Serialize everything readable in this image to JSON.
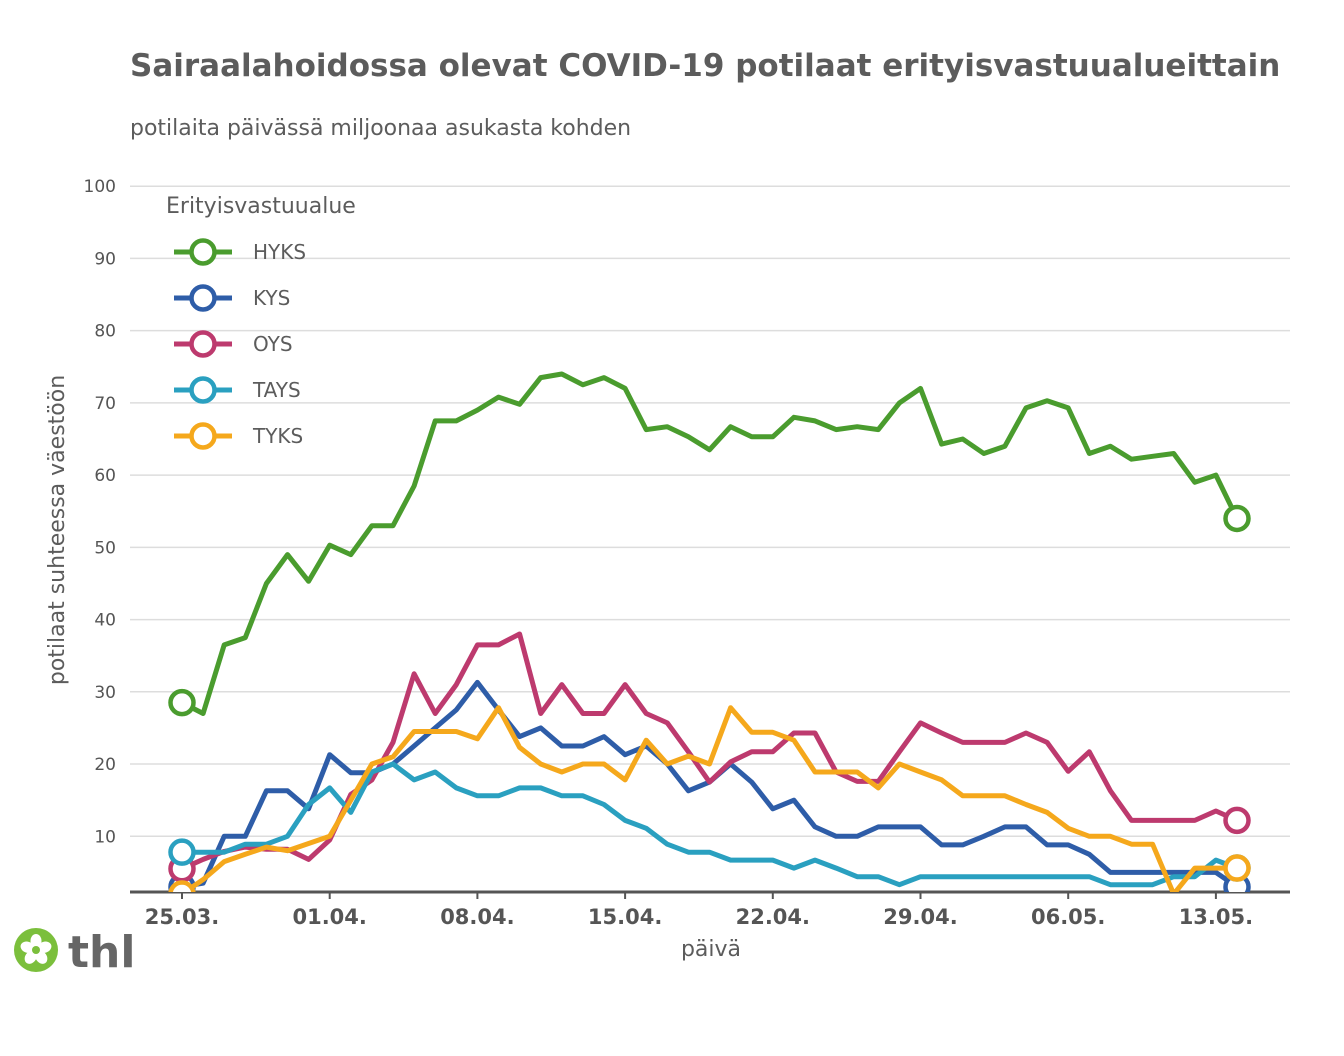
{
  "colors": {
    "HYKS": "#4a9c2e",
    "KYS": "#2e5da8",
    "OYS": "#bd3a6e",
    "TAYS": "#2aa0c0",
    "TYKS": "#f5a81c",
    "grid": "#dddddd",
    "axis": "#555555",
    "logo_green": "#7bbf3c"
  },
  "logo": {
    "text": "thl",
    "icon": "flower-icon"
  },
  "chart_data": {
    "type": "line",
    "title": "Sairaalahoidossa olevat COVID-19 potilaat erityisvastuualueittain",
    "subtitle": "potilaita päivässä miljoonaa asukasta kohden",
    "xlabel": "päivä",
    "ylabel": "potilaat suhteessa väestöön",
    "legend_title": "Erityisvastuualue",
    "legend_position": "top-left",
    "grid": true,
    "ylim": [
      0,
      100
    ],
    "yticks": [
      10,
      20,
      30,
      40,
      50,
      60,
      70,
      80,
      90,
      100
    ],
    "xticks": [
      {
        "day": 0,
        "label": "25.03."
      },
      {
        "day": 7,
        "label": "01.04."
      },
      {
        "day": 14,
        "label": "08.04."
      },
      {
        "day": 21,
        "label": "15.04."
      },
      {
        "day": 28,
        "label": "22.04."
      },
      {
        "day": 35,
        "label": "29.04."
      },
      {
        "day": 42,
        "label": "06.05."
      },
      {
        "day": 49,
        "label": "13.05."
      }
    ],
    "series": [
      {
        "name": "HYKS",
        "values": [
          28.5,
          27,
          36.5,
          37.5,
          45,
          49,
          45.3,
          50.3,
          49,
          53,
          53,
          58.5,
          67.5,
          67.5,
          69,
          70.8,
          69.8,
          73.5,
          74,
          72.5,
          73.5,
          72,
          66.3,
          66.7,
          65.3,
          63.5,
          66.7,
          65.3,
          65.3,
          68,
          67.5,
          66.3,
          66.7,
          66.3,
          70,
          72,
          64.3,
          65,
          63,
          64,
          69.3,
          70.3,
          69.3,
          63,
          64,
          62.2,
          62.6,
          63,
          59,
          60,
          54
        ]
      },
      {
        "name": "KYS",
        "values": [
          3,
          3.5,
          10,
          10,
          16.3,
          16.3,
          13.8,
          21.3,
          18.8,
          18.8,
          20,
          22.5,
          25,
          27.5,
          31.3,
          27.5,
          23.8,
          25,
          22.5,
          22.5,
          23.8,
          21.3,
          22.5,
          20,
          16.3,
          17.5,
          20,
          17.5,
          13.8,
          15,
          11.3,
          10,
          10,
          11.3,
          11.3,
          11.3,
          8.8,
          8.8,
          10,
          11.3,
          11.3,
          8.8,
          8.8,
          7.5,
          5,
          5,
          5,
          5,
          5,
          5,
          3
        ]
      },
      {
        "name": "OYS",
        "values": [
          5.5,
          6.8,
          7.9,
          8.5,
          8.2,
          8.2,
          6.8,
          9.5,
          15.8,
          17.8,
          23,
          32.5,
          27,
          31,
          36.5,
          36.5,
          38,
          27,
          31,
          27,
          27,
          31,
          27,
          25.7,
          21.7,
          17.5,
          20.3,
          21.7,
          21.7,
          24.3,
          24.3,
          18.9,
          17.6,
          17.6,
          21.7,
          25.7,
          24.3,
          23,
          23,
          23,
          24.3,
          23,
          19,
          21.7,
          16.3,
          12.2,
          12.2,
          12.2,
          12.2,
          13.5,
          12.2
        ]
      },
      {
        "name": "TAYS",
        "values": [
          7.8,
          7.8,
          7.8,
          8.9,
          8.9,
          10,
          14.4,
          16.7,
          13.3,
          18.9,
          20,
          17.8,
          18.9,
          16.7,
          15.6,
          15.6,
          16.7,
          16.7,
          15.6,
          15.6,
          14.4,
          12.2,
          11.1,
          8.9,
          7.8,
          7.8,
          6.7,
          6.7,
          6.7,
          5.6,
          6.7,
          5.6,
          4.4,
          4.4,
          3.3,
          4.4,
          4.4,
          4.4,
          4.4,
          4.4,
          4.4,
          4.4,
          4.4,
          4.4,
          3.3,
          3.3,
          3.3,
          4.4,
          4.4,
          6.7,
          5.6
        ]
      },
      {
        "name": "TYKS",
        "values": [
          2,
          4,
          6.5,
          7.5,
          8.5,
          8,
          9,
          10,
          15,
          20,
          21,
          24.5,
          24.5,
          24.5,
          23.5,
          27.8,
          22.3,
          20,
          18.9,
          20,
          20,
          17.8,
          23.3,
          20,
          21.1,
          20,
          27.8,
          24.4,
          24.4,
          23.3,
          18.9,
          18.9,
          18.9,
          16.7,
          20,
          18.9,
          17.8,
          15.6,
          15.6,
          15.6,
          14.4,
          13.3,
          11.1,
          10,
          10,
          8.9,
          8.9,
          2,
          5.6,
          5.6,
          5.6
        ]
      }
    ]
  }
}
